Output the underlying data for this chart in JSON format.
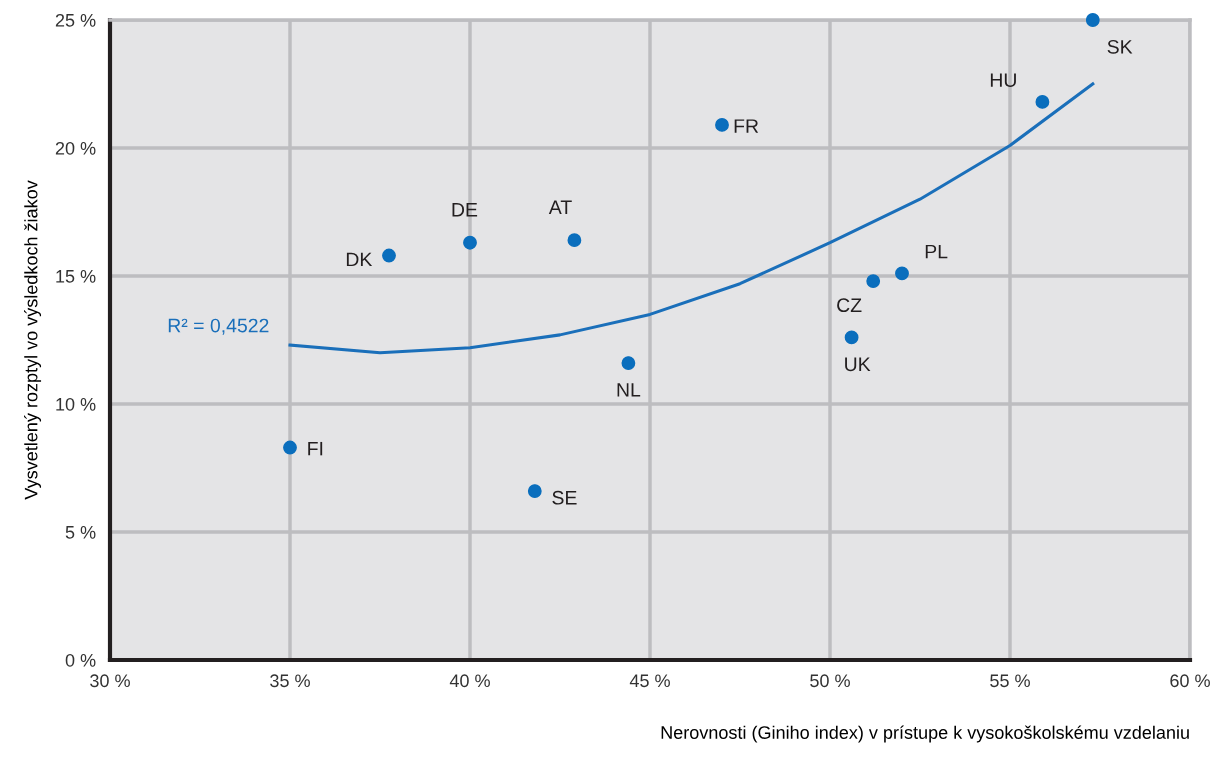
{
  "chart_data": {
    "type": "scatter",
    "xlabel": "Nerovnosti (Giniho index) v prístupe k vysokoškolskému vzdelaniu",
    "ylabel": "Vysvetlený rozptyl vo výsledkoch žiakov",
    "xlim": [
      30,
      60
    ],
    "ylim": [
      0,
      25
    ],
    "xticks": [
      {
        "value": 30,
        "label": "30 %"
      },
      {
        "value": 35,
        "label": "35 %"
      },
      {
        "value": 40,
        "label": "40 %"
      },
      {
        "value": 45,
        "label": "45 %"
      },
      {
        "value": 50,
        "label": "50 %"
      },
      {
        "value": 55,
        "label": "55 %"
      },
      {
        "value": 60,
        "label": "60 %"
      }
    ],
    "yticks": [
      {
        "value": 0,
        "label": "0 %"
      },
      {
        "value": 5,
        "label": "5 %"
      },
      {
        "value": 10,
        "label": "10 %"
      },
      {
        "value": 15,
        "label": "15 %"
      },
      {
        "value": 20,
        "label": "20 %"
      },
      {
        "value": 25,
        "label": "25 %"
      }
    ],
    "grid": true,
    "series": [
      {
        "marker": "circle",
        "color": "#0a6ebd",
        "x": [
          35.0,
          41.8,
          37.75,
          40.0,
          42.9,
          44.4,
          47.0,
          50.6,
          51.2,
          52.0,
          55.9,
          57.3
        ],
        "values": [
          8.3,
          6.6,
          15.8,
          16.3,
          16.4,
          11.6,
          20.9,
          12.6,
          14.8,
          15.1,
          21.8,
          25.0
        ]
      },
      {
        "type": "line",
        "color": "#1a6fba",
        "x": [
          35,
          37.5,
          40,
          42.5,
          45,
          47.5,
          50,
          52.5,
          55,
          57.3
        ],
        "values": [
          12.3,
          12.0,
          12.2,
          12.7,
          13.5,
          14.7,
          16.3,
          18.0,
          20.1,
          22.5
        ]
      }
    ],
    "annotations": [
      {
        "text": "FI",
        "x": 35.0,
        "y": 8.3
      },
      {
        "text": "SE",
        "x": 41.8,
        "y": 6.6
      },
      {
        "text": "DK",
        "x": 37.75,
        "y": 15.8
      },
      {
        "text": "DE",
        "x": 40.0,
        "y": 16.3
      },
      {
        "text": "AT",
        "x": 42.9,
        "y": 16.4
      },
      {
        "text": "NL",
        "x": 44.4,
        "y": 11.6
      },
      {
        "text": "FR",
        "x": 47.0,
        "y": 20.9
      },
      {
        "text": "UK",
        "x": 50.6,
        "y": 12.6
      },
      {
        "text": "CZ",
        "x": 51.2,
        "y": 14.8
      },
      {
        "text": "PL",
        "x": 52.0,
        "y": 15.1
      },
      {
        "text": "HU",
        "x": 55.9,
        "y": 21.8
      },
      {
        "text": "SK",
        "x": 57.3,
        "y": 25.0
      },
      "R² = 0,4522"
    ]
  }
}
